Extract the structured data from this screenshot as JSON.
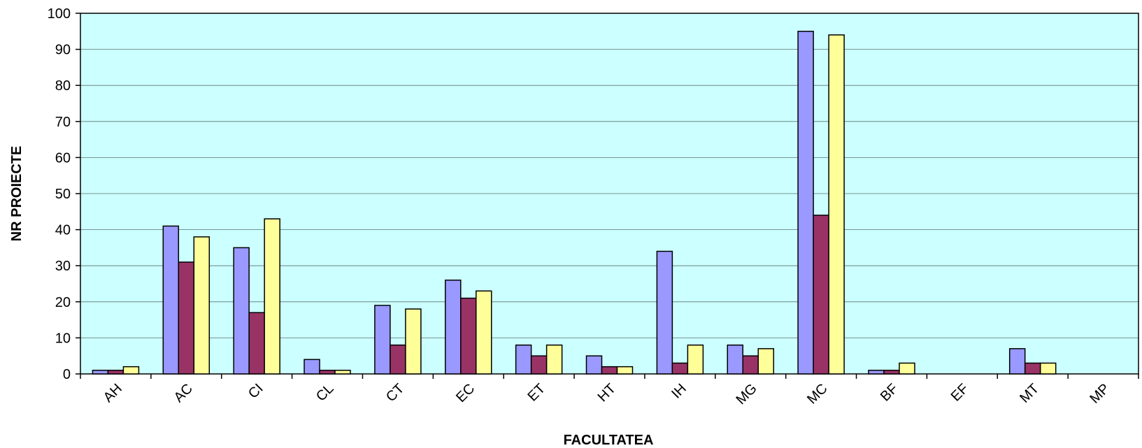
{
  "chart_data": {
    "type": "bar",
    "title": "",
    "xlabel": "FACULTATEA",
    "ylabel": "NR PROIECTE",
    "ylim": [
      0,
      100
    ],
    "y_ticks": [
      "0",
      "10",
      "20",
      "30",
      "40",
      "50",
      "60",
      "70",
      "80",
      "90",
      "100"
    ],
    "grid": true,
    "legend": "none",
    "categories": [
      "AH",
      "AC",
      "CI",
      "CL",
      "CT",
      "EC",
      "ET",
      "HT",
      "IH",
      "MG",
      "MC",
      "BF",
      "EF",
      "MT",
      "MP"
    ],
    "series": [
      {
        "values": [
          1,
          41,
          35,
          4,
          19,
          26,
          8,
          5,
          34,
          8,
          95,
          1,
          0,
          7,
          0
        ],
        "color": "#9999ff"
      },
      {
        "values": [
          1,
          31,
          17,
          1,
          8,
          21,
          5,
          2,
          3,
          5,
          44,
          1,
          0,
          3,
          0
        ],
        "color": "#993366"
      },
      {
        "values": [
          2,
          38,
          43,
          1,
          18,
          23,
          8,
          2,
          8,
          7,
          94,
          3,
          0,
          3,
          0
        ],
        "color": "#ffff99"
      }
    ],
    "plot_background": "#ccffff"
  }
}
